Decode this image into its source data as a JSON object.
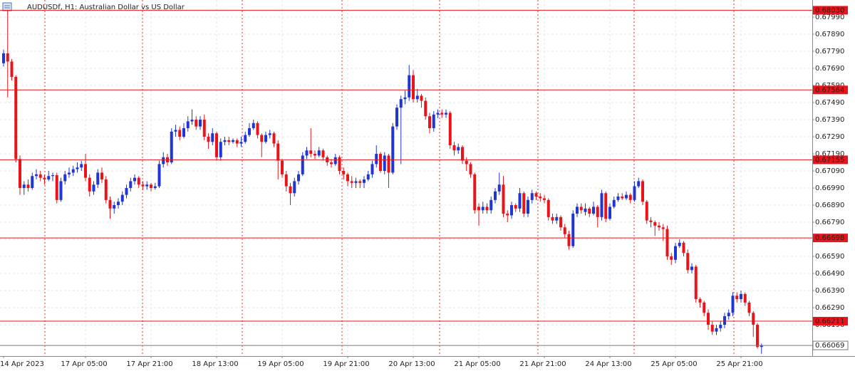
{
  "chart_data": {
    "type": "candlestick",
    "title": "AUDUSDf, H1:  Australian Dollar vs US Dollar",
    "up_color": "#1f35d6",
    "down_color": "#e8141a",
    "level_color": "#e8141a",
    "price_color": "#7a7a7a",
    "grid": true,
    "ylim": [
      0.66007,
      0.6809
    ],
    "yticks": [
      {
        "value": 0.6799,
        "label": "0.67990"
      },
      {
        "value": 0.6789,
        "label": "0.67890"
      },
      {
        "value": 0.6779,
        "label": "0.67790"
      },
      {
        "value": 0.6769,
        "label": "0.67690"
      },
      {
        "value": 0.6759,
        "label": "0.67590"
      },
      {
        "value": 0.6749,
        "label": "0.67490"
      },
      {
        "value": 0.6739,
        "label": "0.67390"
      },
      {
        "value": 0.6729,
        "label": "0.67290"
      },
      {
        "value": 0.6719,
        "label": "0.67190"
      },
      {
        "value": 0.6709,
        "label": "0.67090"
      },
      {
        "value": 0.6699,
        "label": "0.66990"
      },
      {
        "value": 0.6689,
        "label": "0.66890"
      },
      {
        "value": 0.6679,
        "label": "0.66790"
      },
      {
        "value": 0.6669,
        "label": "0.66690"
      },
      {
        "value": 0.6659,
        "label": "0.66590"
      },
      {
        "value": 0.6649,
        "label": "0.66490"
      },
      {
        "value": 0.6639,
        "label": "0.66390"
      },
      {
        "value": 0.6629,
        "label": "0.66290"
      },
      {
        "value": 0.6619,
        "label": "0.66190"
      }
    ],
    "levels": [
      {
        "value": 0.6803,
        "label": "0.68030"
      },
      {
        "value": 0.67564,
        "label": "0.67564"
      },
      {
        "value": 0.67155,
        "label": "0.67155"
      },
      {
        "value": 0.66698,
        "label": "0.66698"
      },
      {
        "value": 0.66211,
        "label": "0.66211"
      }
    ],
    "last_price": {
      "value": 0.66069,
      "label": "0.66069"
    },
    "categories": [
      "14 Apr 2023",
      null,
      null,
      null,
      null,
      null,
      null,
      null,
      null,
      null,
      null,
      null,
      null,
      null,
      null,
      null,
      null,
      null,
      null,
      null,
      "17 Apr 05:00",
      null,
      null,
      null,
      null,
      null,
      null,
      null,
      null,
      null,
      null,
      null,
      null,
      null,
      null,
      null,
      "17 Apr 21:00",
      null,
      null,
      null,
      null,
      null,
      null,
      null,
      null,
      null,
      null,
      null,
      null,
      null,
      null,
      null,
      "18 Apr 13:00",
      null,
      null,
      null,
      null,
      null,
      null,
      null,
      null,
      null,
      null,
      null,
      null,
      null,
      null,
      null,
      "19 Apr 05:00",
      null,
      null,
      null,
      null,
      null,
      null,
      null,
      null,
      null,
      null,
      null,
      null,
      null,
      null,
      null,
      "19 Apr 21:00",
      null,
      null,
      null,
      null,
      null,
      null,
      null,
      null,
      null,
      null,
      null,
      null,
      null,
      null,
      null,
      "20 Apr 13:00",
      null,
      null,
      null,
      null,
      null,
      null,
      null,
      null,
      null,
      null,
      null,
      null,
      null,
      null,
      null,
      "21 Apr 05:00",
      null,
      null,
      null,
      null,
      null,
      null,
      null,
      null,
      null,
      null,
      null,
      null,
      null,
      null,
      null,
      "21 Apr 21:00",
      null,
      null,
      null,
      null,
      null,
      null,
      null,
      null,
      null,
      null,
      null,
      null,
      null,
      null,
      null,
      "24 Apr 13:00",
      null,
      null,
      null,
      null,
      null,
      null,
      null,
      null,
      null,
      null,
      null,
      null,
      null,
      null,
      null,
      "25 Apr 05:00",
      null,
      null,
      null,
      null,
      null,
      null,
      null,
      null,
      null,
      null,
      null,
      null,
      null,
      null,
      null,
      "25 Apr 21:00",
      null,
      null,
      null,
      null,
      null
    ],
    "open": [
      0.6772,
      0.67778,
      0.6773,
      0.6764,
      0.6716,
      0.6699,
      0.6701,
      0.6699,
      0.6706,
      0.6707,
      0.6705,
      0.6704,
      0.6706,
      0.67065,
      0.6692,
      0.6703,
      0.6707,
      0.6708,
      0.671,
      0.6711,
      0.6713,
      0.6705,
      0.6697,
      0.6701,
      0.6708,
      0.6704,
      0.6692,
      0.6687,
      0.6689,
      0.6691,
      0.6695,
      0.6699,
      0.6703,
      0.6705,
      0.6701,
      0.67,
      0.6701,
      0.6699,
      0.67,
      0.6713,
      0.6717,
      0.6714,
      0.6732,
      0.6733,
      0.6729,
      0.6734,
      0.6738,
      0.6739,
      0.6735,
      0.6739,
      0.6729,
      0.6726,
      0.6731,
      0.6717,
      0.6726,
      0.6727,
      0.6726,
      0.6727,
      0.6725,
      0.6726,
      0.673,
      0.6734,
      0.6737,
      0.673,
      0.6726,
      0.673,
      0.6731,
      0.6725,
      0.6715,
      0.6707,
      0.67,
      0.6696,
      0.6703,
      0.6707,
      0.6718,
      0.6721,
      0.6719,
      0.6718,
      0.6721,
      0.6717,
      0.6714,
      0.6713,
      0.6717,
      0.6709,
      0.6707,
      0.6703,
      0.6702,
      0.6703,
      0.6702,
      0.6704,
      0.6707,
      0.6713,
      0.6719,
      0.6709,
      0.6718,
      0.6708,
      0.6735,
      0.6746,
      0.6751,
      0.6752,
      0.6765,
      0.6751,
      0.6753,
      0.675,
      0.6741,
      0.6734,
      0.6742,
      0.6743,
      0.6742,
      0.6743,
      0.6724,
      0.6721,
      0.6723,
      0.6715,
      0.6713,
      0.6707,
      0.6688,
      0.6686,
      0.6688,
      0.6686,
      0.6692,
      0.6697,
      0.6701,
      0.6684,
      0.6683,
      0.6689,
      0.6687,
      0.6696,
      0.6684,
      0.6692,
      0.6696,
      0.6694,
      0.6693,
      0.6692,
      0.6682,
      0.668,
      0.6682,
      0.6676,
      0.6672,
      0.6665,
      0.6684,
      0.6688,
      0.6685,
      0.6687,
      0.6684,
      0.6688,
      0.6682,
      0.6696,
      0.6681,
      0.6688,
      0.6692,
      0.6694,
      0.6693,
      0.6695,
      0.6692,
      0.67,
      0.6703,
      0.6691,
      0.668,
      0.6679,
      0.6677,
      0.6676,
      0.6675,
      0.6659,
      0.6657,
      0.6665,
      0.6667,
      0.6661,
      0.6651,
      0.6653,
      0.6634,
      0.6632,
      0.6626,
      0.6619,
      0.6615,
      0.6617,
      0.6619,
      0.6624,
      0.6626,
      0.6636,
      0.6634,
      0.6637,
      0.6632,
      0.6626,
      0.6619,
      0.6606
    ],
    "high": [
      0.678,
      0.6803,
      0.67745,
      0.6765,
      0.6718,
      0.6703,
      0.6704,
      0.6708,
      0.671,
      0.6709,
      0.6707,
      0.6709,
      0.6708,
      0.6708,
      0.6705,
      0.6709,
      0.6711,
      0.6712,
      0.6714,
      0.6715,
      0.6719,
      0.6707,
      0.6703,
      0.671,
      0.6711,
      0.6706,
      0.6694,
      0.6691,
      0.6693,
      0.6697,
      0.6701,
      0.6705,
      0.6707,
      0.6706,
      0.6703,
      0.6703,
      0.6702,
      0.6702,
      0.6715,
      0.672,
      0.6719,
      0.6734,
      0.6736,
      0.6735,
      0.6737,
      0.6741,
      0.6745,
      0.6741,
      0.6741,
      0.6742,
      0.6731,
      0.6734,
      0.6732,
      0.6728,
      0.6729,
      0.6729,
      0.6728,
      0.6728,
      0.6729,
      0.6732,
      0.6737,
      0.6739,
      0.6738,
      0.6731,
      0.6732,
      0.6733,
      0.6732,
      0.6727,
      0.6716,
      0.6709,
      0.6702,
      0.6705,
      0.6709,
      0.672,
      0.6723,
      0.6734,
      0.6721,
      0.6723,
      0.6722,
      0.6718,
      0.6716,
      0.6719,
      0.6718,
      0.6711,
      0.6708,
      0.6706,
      0.6705,
      0.6704,
      0.6706,
      0.6709,
      0.6715,
      0.6724,
      0.672,
      0.672,
      0.6719,
      0.6737,
      0.6748,
      0.6753,
      0.6756,
      0.6771,
      0.6768,
      0.6757,
      0.6754,
      0.6752,
      0.6743,
      0.6744,
      0.6745,
      0.6745,
      0.6745,
      0.6744,
      0.6726,
      0.6725,
      0.6724,
      0.6717,
      0.6714,
      0.6708,
      0.669,
      0.6691,
      0.669,
      0.6694,
      0.6699,
      0.6708,
      0.6706,
      0.6686,
      0.6691,
      0.669,
      0.6699,
      0.6697,
      0.6694,
      0.6698,
      0.6697,
      0.6696,
      0.6695,
      0.6693,
      0.6684,
      0.6684,
      0.6683,
      0.6678,
      0.6674,
      0.6686,
      0.669,
      0.669,
      0.669,
      0.6688,
      0.6691,
      0.6689,
      0.6698,
      0.6697,
      0.669,
      0.6694,
      0.6696,
      0.6696,
      0.6697,
      0.6696,
      0.6703,
      0.6705,
      0.6704,
      0.6692,
      0.6682,
      0.668,
      0.6679,
      0.6678,
      0.6677,
      0.6661,
      0.6667,
      0.6669,
      0.6668,
      0.6663,
      0.6655,
      0.6654,
      0.6635,
      0.6633,
      0.6628,
      0.6621,
      0.6619,
      0.6621,
      0.6626,
      0.6628,
      0.6638,
      0.6638,
      0.6639,
      0.6638,
      0.6633,
      0.6627,
      0.662,
      0.6608
    ],
    "low": [
      0.677,
      0.6752,
      0.6762,
      0.6714,
      0.6695,
      0.6695,
      0.6697,
      0.6698,
      0.6704,
      0.6703,
      0.6701,
      0.6703,
      0.6703,
      0.669,
      0.6691,
      0.6701,
      0.6705,
      0.6706,
      0.6708,
      0.6709,
      0.6703,
      0.6694,
      0.6695,
      0.6699,
      0.6702,
      0.669,
      0.6681,
      0.6684,
      0.6687,
      0.6689,
      0.6693,
      0.6697,
      0.6701,
      0.6699,
      0.6698,
      0.6698,
      0.6697,
      0.6698,
      0.6699,
      0.6711,
      0.6712,
      0.6713,
      0.6729,
      0.6727,
      0.6728,
      0.6732,
      0.6736,
      0.6733,
      0.6733,
      0.6727,
      0.6722,
      0.6724,
      0.6715,
      0.6715,
      0.6724,
      0.6724,
      0.6725,
      0.6723,
      0.6723,
      0.6725,
      0.6729,
      0.6733,
      0.6728,
      0.6717,
      0.6725,
      0.6728,
      0.6723,
      0.6704,
      0.6705,
      0.6697,
      0.6689,
      0.6694,
      0.6701,
      0.6706,
      0.6716,
      0.6717,
      0.6716,
      0.6717,
      0.6715,
      0.6712,
      0.6711,
      0.6712,
      0.6707,
      0.6704,
      0.67,
      0.6699,
      0.6699,
      0.6699,
      0.6699,
      0.6703,
      0.6705,
      0.6711,
      0.6708,
      0.6707,
      0.6699,
      0.6707,
      0.6733,
      0.6713,
      0.6748,
      0.675,
      0.6749,
      0.6749,
      0.6746,
      0.6739,
      0.6731,
      0.6732,
      0.674,
      0.674,
      0.674,
      0.6722,
      0.6718,
      0.6719,
      0.6713,
      0.6709,
      0.6705,
      0.6684,
      0.6677,
      0.6684,
      0.6684,
      0.6684,
      0.669,
      0.6695,
      0.6682,
      0.6679,
      0.6681,
      0.6685,
      0.6685,
      0.6682,
      0.6682,
      0.669,
      0.6692,
      0.6691,
      0.669,
      0.668,
      0.6678,
      0.6678,
      0.6674,
      0.667,
      0.6663,
      0.6664,
      0.6682,
      0.6684,
      0.6683,
      0.6682,
      0.6683,
      0.6676,
      0.668,
      0.6679,
      0.668,
      0.6687,
      0.6691,
      0.6692,
      0.6692,
      0.669,
      0.6691,
      0.6699,
      0.6689,
      0.6678,
      0.6676,
      0.6671,
      0.6674,
      0.6668,
      0.6657,
      0.6654,
      0.6655,
      0.6664,
      0.6659,
      0.6649,
      0.6649,
      0.6632,
      0.6629,
      0.6624,
      0.6616,
      0.6613,
      0.6613,
      0.6615,
      0.6617,
      0.6622,
      0.6624,
      0.6632,
      0.6632,
      0.663,
      0.6624,
      0.6612,
      0.6605,
      0.6602
    ],
    "close": [
      0.67778,
      0.6773,
      0.6764,
      0.6716,
      0.6699,
      0.6701,
      0.6699,
      0.6706,
      0.6707,
      0.6705,
      0.6704,
      0.6706,
      0.67065,
      0.6692,
      0.6703,
      0.6707,
      0.6708,
      0.671,
      0.6711,
      0.6713,
      0.6705,
      0.6697,
      0.6701,
      0.6708,
      0.6704,
      0.6692,
      0.6687,
      0.6689,
      0.6691,
      0.6695,
      0.6699,
      0.6703,
      0.6705,
      0.6701,
      0.67,
      0.6701,
      0.6699,
      0.67,
      0.6713,
      0.6717,
      0.6714,
      0.6732,
      0.6733,
      0.6729,
      0.6734,
      0.6738,
      0.6739,
      0.6735,
      0.6739,
      0.6729,
      0.6726,
      0.6731,
      0.6717,
      0.6726,
      0.6727,
      0.6726,
      0.6727,
      0.6725,
      0.6726,
      0.673,
      0.6734,
      0.6737,
      0.673,
      0.6726,
      0.673,
      0.6731,
      0.6725,
      0.6715,
      0.6707,
      0.67,
      0.6696,
      0.6703,
      0.6707,
      0.6718,
      0.6721,
      0.6719,
      0.6718,
      0.6721,
      0.6717,
      0.6714,
      0.6713,
      0.6717,
      0.6709,
      0.6707,
      0.6703,
      0.6702,
      0.6703,
      0.6702,
      0.6704,
      0.6707,
      0.6713,
      0.6719,
      0.6709,
      0.6718,
      0.6708,
      0.6735,
      0.6746,
      0.6751,
      0.6752,
      0.6765,
      0.6751,
      0.6753,
      0.675,
      0.6741,
      0.6734,
      0.6742,
      0.6743,
      0.6742,
      0.6743,
      0.6724,
      0.6721,
      0.6723,
      0.6715,
      0.6713,
      0.6707,
      0.6686,
      0.6686,
      0.6688,
      0.6686,
      0.6692,
      0.6697,
      0.6701,
      0.6684,
      0.6683,
      0.6689,
      0.6687,
      0.6696,
      0.6684,
      0.6692,
      0.6696,
      0.6694,
      0.6693,
      0.6692,
      0.6682,
      0.668,
      0.6682,
      0.6676,
      0.6672,
      0.6665,
      0.6684,
      0.6688,
      0.6686,
      0.6687,
      0.6684,
      0.6688,
      0.6682,
      0.6696,
      0.6681,
      0.6688,
      0.6692,
      0.6694,
      0.6693,
      0.6695,
      0.6692,
      0.67,
      0.6703,
      0.6691,
      0.668,
      0.6679,
      0.6677,
      0.6676,
      0.6675,
      0.6659,
      0.6657,
      0.6665,
      0.6667,
      0.6661,
      0.6651,
      0.6653,
      0.6634,
      0.6632,
      0.6626,
      0.6619,
      0.6615,
      0.6617,
      0.6619,
      0.6624,
      0.6626,
      0.6636,
      0.6634,
      0.6637,
      0.6632,
      0.6626,
      0.6619,
      0.6606,
      0.66069
    ]
  }
}
